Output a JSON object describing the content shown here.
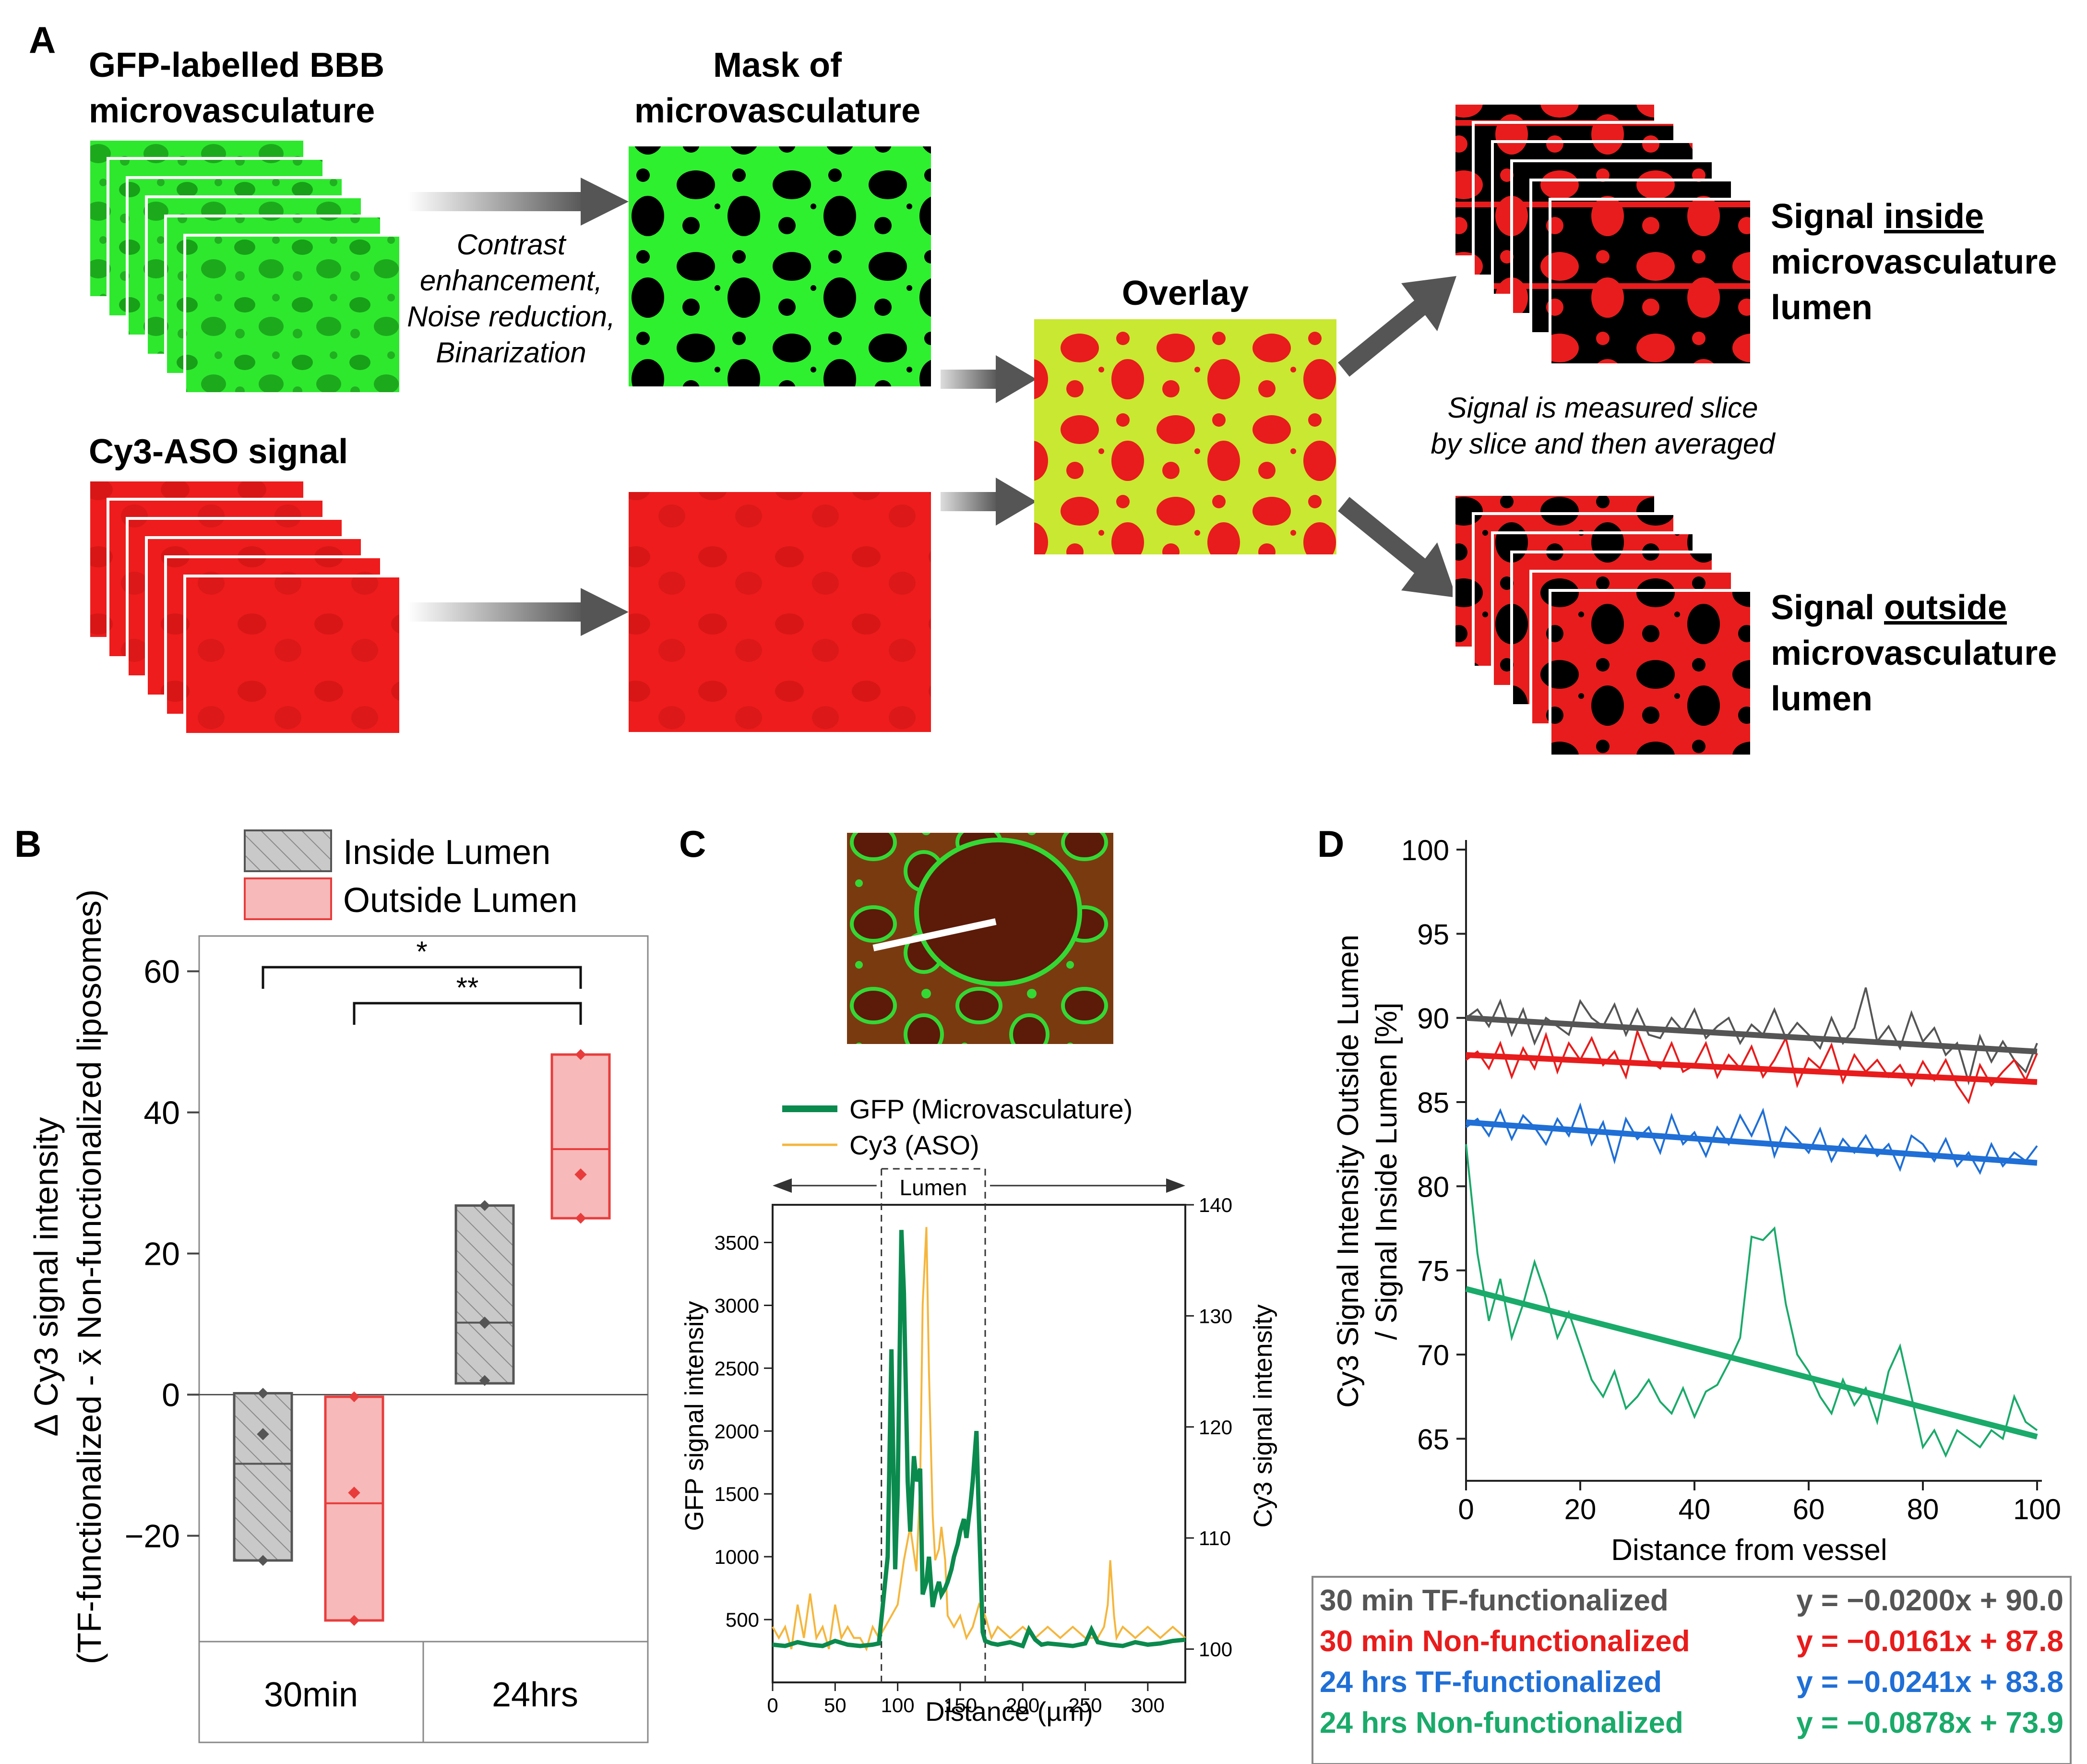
{
  "panel_letters": {
    "a": "A",
    "b": "B",
    "c": "C",
    "d": "D"
  },
  "panel_a": {
    "gfp_title": [
      "GFP-labelled BBB",
      "microvasculature"
    ],
    "mask_title": [
      "Mask of",
      "microvasculature"
    ],
    "processing_steps": [
      "Contrast",
      "enhancement,",
      "Noise reduction,",
      "Binarization"
    ],
    "cy3_title": "Cy3-ASO signal",
    "overlay_title": "Overlay",
    "inside_label": {
      "prefix": "Signal ",
      "emph": "inside",
      "rest": [
        "microvasculature",
        "lumen"
      ]
    },
    "outside_label": {
      "prefix": "Signal ",
      "emph": "outside",
      "rest": [
        "microvasculature",
        "lumen"
      ]
    },
    "measure_note": [
      "Signal is measured slice",
      "by slice and then averaged"
    ],
    "colors": {
      "green": "#2ee82e",
      "red": "#e81c1c",
      "arrow": "#555555",
      "overlay_yellow": "#c8e832"
    }
  },
  "chart_data": [
    {
      "panel": "B",
      "type": "box",
      "categories": [
        "30min",
        "24hrs"
      ],
      "ylabel": [
        "Δ Cy3 signal intensity",
        "(TF-functionalized -  x̄ Non-functionalized liposomes)"
      ],
      "ylim": [
        -35,
        65
      ],
      "yticks": [
        -20,
        0,
        20,
        40,
        60
      ],
      "legend": [
        "Inside Lumen",
        "Outside Lumen"
      ],
      "series": [
        {
          "name": "Inside Lumen",
          "color": "#555555",
          "fill": "#c9c9c9",
          "boxes": [
            {
              "category": "30min",
              "q1": -23.5,
              "median": -9.8,
              "q3": 0.2,
              "mean": -5.6,
              "points": [
                0.2,
                -23.5
              ]
            },
            {
              "category": "24hrs",
              "q1": 1.6,
              "median": 10.2,
              "q3": 26.8,
              "mean": 10.2,
              "points": [
                26.8,
                2.0
              ]
            }
          ]
        },
        {
          "name": "Outside Lumen",
          "color": "#e83c3c",
          "fill": "#f7b9b9",
          "boxes": [
            {
              "category": "30min",
              "q1": -32.0,
              "median": -15.4,
              "q3": -0.3,
              "mean": -13.9,
              "points": [
                -0.3,
                -32.0
              ]
            },
            {
              "category": "24hrs",
              "q1": 25.0,
              "median": 34.8,
              "q3": 48.2,
              "mean": 31.2,
              "points": [
                48.2,
                25.0
              ]
            }
          ]
        }
      ],
      "significance": [
        {
          "from": "30min Inside Lumen",
          "to": "24hrs Outside Lumen",
          "label": "*"
        },
        {
          "from": "24hrs Inside Lumen",
          "to": "24hrs Outside Lumen",
          "label": "**"
        }
      ]
    },
    {
      "panel": "C",
      "type": "line",
      "xlabel": "Distance (µm)",
      "ylabel_left": "GFP signal intensity",
      "ylabel_right": "Cy3 signal intensity",
      "xlim": [
        0,
        330
      ],
      "xticks": [
        0,
        50,
        100,
        150,
        200,
        250,
        300
      ],
      "ylim_left": [
        0,
        3800
      ],
      "yticks_left": [
        500,
        1000,
        1500,
        2000,
        2500,
        3000,
        3500
      ],
      "ylim_right": [
        97,
        140
      ],
      "yticks_right": [
        100,
        110,
        120,
        130,
        140
      ],
      "lumen_label": "Lumen",
      "lumen_range": [
        87,
        170
      ],
      "series": [
        {
          "name": "GFP (Microvasculature)",
          "axis": "left",
          "color": "#0b8a4e",
          "x": [
            0,
            10,
            20,
            30,
            40,
            50,
            60,
            70,
            80,
            85,
            88,
            92,
            95,
            98,
            100,
            103,
            105,
            108,
            110,
            113,
            115,
            118,
            120,
            123,
            125,
            128,
            130,
            133,
            135,
            138,
            140,
            143,
            145,
            148,
            150,
            153,
            155,
            158,
            160,
            163,
            165,
            168,
            170,
            175,
            180,
            190,
            200,
            205,
            210,
            215,
            220,
            230,
            240,
            250,
            255,
            260,
            270,
            280,
            290,
            300,
            310,
            320,
            330
          ],
          "y": [
            300,
            290,
            320,
            300,
            290,
            330,
            300,
            290,
            300,
            310,
            600,
            1000,
            2650,
            900,
            1500,
            3600,
            3100,
            1600,
            1200,
            1800,
            1600,
            1700,
            700,
            800,
            1000,
            600,
            700,
            800,
            700,
            750,
            800,
            900,
            1000,
            1100,
            1200,
            1300,
            1150,
            1400,
            1600,
            2000,
            1300,
            400,
            330,
            310,
            300,
            320,
            290,
            420,
            340,
            300,
            310,
            300,
            290,
            310,
            420,
            320,
            300,
            290,
            320,
            300,
            310,
            330,
            340
          ]
        },
        {
          "name": "Cy3 (ASO)",
          "axis": "right",
          "color": "#f5b63c",
          "x": [
            0,
            5,
            10,
            15,
            20,
            25,
            30,
            35,
            40,
            45,
            50,
            55,
            60,
            65,
            70,
            75,
            80,
            85,
            90,
            95,
            100,
            105,
            110,
            115,
            118,
            120,
            123,
            125,
            128,
            130,
            133,
            135,
            138,
            140,
            145,
            150,
            155,
            160,
            165,
            170,
            175,
            180,
            190,
            200,
            210,
            220,
            230,
            240,
            250,
            260,
            265,
            268,
            270,
            273,
            275,
            280,
            290,
            300,
            310,
            320,
            330
          ],
          "y": [
            102,
            101,
            102,
            100,
            104,
            101,
            105,
            101,
            102,
            100,
            104,
            101,
            102,
            101,
            101,
            100,
            102,
            101,
            102,
            103,
            104,
            108,
            111,
            107,
            115,
            131,
            138,
            125,
            112,
            108,
            109,
            111,
            108,
            103,
            102,
            103,
            101,
            102,
            104,
            103,
            101,
            102,
            101,
            102,
            101,
            102,
            101,
            102,
            101,
            101,
            102,
            104,
            108,
            103,
            101,
            102,
            101,
            102,
            101,
            102,
            101
          ]
        }
      ]
    },
    {
      "panel": "D",
      "type": "line",
      "xlabel": "Distance from vessel",
      "ylabel": [
        "Cy3 Signal Intensity Outside Lumen",
        "/ Signal Inside Lumen [%]"
      ],
      "xlim": [
        0,
        100
      ],
      "xticks": [
        0,
        20,
        40,
        60,
        80,
        100
      ],
      "ylim": [
        62.5,
        100
      ],
      "yticks": [
        65,
        70,
        75,
        80,
        85,
        90,
        95,
        100
      ],
      "series": [
        {
          "name": "30 min TF-functionalized",
          "color": "#555555",
          "fit": {
            "slope": -0.02,
            "intercept": 90.0
          },
          "fit_label": "y = −0.0200x + 90.0",
          "x": [
            0,
            2,
            4,
            6,
            8,
            10,
            12,
            14,
            16,
            18,
            20,
            22,
            24,
            26,
            28,
            30,
            32,
            34,
            36,
            38,
            40,
            42,
            44,
            46,
            48,
            50,
            52,
            54,
            56,
            58,
            60,
            62,
            64,
            66,
            68,
            70,
            72,
            74,
            76,
            78,
            80,
            82,
            84,
            86,
            88,
            90,
            92,
            94,
            96,
            98,
            100
          ],
          "y": [
            90,
            90.5,
            89.5,
            91,
            89,
            90.5,
            88.5,
            90,
            89.5,
            89,
            91,
            90,
            89.5,
            90.8,
            89,
            90.5,
            89,
            88.8,
            90,
            89.2,
            90.5,
            88.8,
            89.5,
            90,
            88.5,
            89.6,
            89,
            90.5,
            88.8,
            89.7,
            89,
            88.2,
            90,
            88.5,
            89.4,
            91.8,
            88.6,
            89.5,
            88.2,
            90.3,
            88.6,
            89.4,
            87.8,
            88.5,
            86.2,
            88.9,
            87.4,
            88.6,
            87.5,
            86.8,
            88.5
          ]
        },
        {
          "name": "30 min Non-functionalized",
          "color": "#e81c1c",
          "fit": {
            "slope": -0.0161,
            "intercept": 87.8
          },
          "fit_label": "y = −0.0161x + 87.8",
          "x": [
            0,
            2,
            4,
            6,
            8,
            10,
            12,
            14,
            16,
            18,
            20,
            22,
            24,
            26,
            28,
            30,
            32,
            34,
            36,
            38,
            40,
            42,
            44,
            46,
            48,
            50,
            52,
            54,
            56,
            58,
            60,
            62,
            64,
            66,
            68,
            70,
            72,
            74,
            76,
            78,
            80,
            82,
            84,
            86,
            88,
            90,
            92,
            94,
            96,
            98,
            100
          ],
          "y": [
            87.5,
            88,
            87,
            88.5,
            86.5,
            88.2,
            87,
            89,
            86.8,
            88.5,
            87.5,
            88.8,
            87.2,
            88,
            86.5,
            89.2,
            87.5,
            87,
            88.5,
            86.8,
            87.2,
            88.5,
            86.5,
            87.8,
            87,
            88.3,
            86.5,
            87.5,
            88.8,
            86,
            87.6,
            87,
            88.4,
            86.2,
            87.8,
            86.8,
            87.5,
            86.5,
            87.2,
            86,
            87.4,
            86.3,
            87.5,
            86,
            85,
            87.2,
            86,
            86.8,
            87.5,
            86.3,
            87.9
          ]
        },
        {
          "name": "24 hrs TF-functionalized",
          "color": "#1f6fd6",
          "fit": {
            "slope": -0.0241,
            "intercept": 83.8
          },
          "fit_label": "y = −0.0241x + 83.8",
          "x": [
            0,
            2,
            4,
            6,
            8,
            10,
            12,
            14,
            16,
            18,
            20,
            22,
            24,
            26,
            28,
            30,
            32,
            34,
            36,
            38,
            40,
            42,
            44,
            46,
            48,
            50,
            52,
            54,
            56,
            58,
            60,
            62,
            64,
            66,
            68,
            70,
            72,
            74,
            76,
            78,
            80,
            82,
            84,
            86,
            88,
            90,
            92,
            94,
            96,
            98,
            100
          ],
          "y": [
            83.5,
            84,
            83,
            84.5,
            82.8,
            84.2,
            83.5,
            82.5,
            84,
            83,
            84.8,
            82.5,
            83.8,
            81.5,
            84,
            82.8,
            83.5,
            82,
            84.2,
            82.5,
            83.2,
            81.8,
            83.5,
            82.5,
            84.2,
            83,
            84.5,
            81.8,
            83.5,
            82.8,
            82,
            83.4,
            81.5,
            82.8,
            82,
            83,
            81.8,
            82.5,
            81,
            83,
            82.5,
            81.5,
            82.8,
            81.2,
            82,
            80.8,
            82.5,
            81.2,
            82,
            81.5,
            82.4
          ]
        },
        {
          "name": "24 hrs Non-functionalized",
          "color": "#1aaa6a",
          "fit": {
            "slope": -0.0878,
            "intercept": 73.9
          },
          "fit_label": "y = −0.0878x + 73.9",
          "x": [
            0,
            2,
            4,
            6,
            8,
            10,
            12,
            14,
            16,
            18,
            20,
            22,
            24,
            26,
            28,
            30,
            32,
            34,
            36,
            38,
            40,
            42,
            44,
            46,
            48,
            50,
            52,
            54,
            56,
            58,
            60,
            62,
            64,
            66,
            68,
            70,
            72,
            74,
            76,
            78,
            80,
            82,
            84,
            86,
            88,
            90,
            92,
            94,
            96,
            98,
            100
          ],
          "y": [
            82.5,
            76,
            72,
            74.5,
            71,
            73,
            75.5,
            73.5,
            71,
            72.5,
            70.5,
            68.5,
            67.5,
            69,
            66.8,
            67.5,
            68.5,
            67.2,
            66.5,
            68,
            66.3,
            67.8,
            68.2,
            69.5,
            71,
            77,
            76.8,
            77.5,
            73,
            70,
            69,
            67.5,
            66.5,
            68.5,
            67,
            68,
            66,
            69,
            70.5,
            67.5,
            64.5,
            65.5,
            64,
            65.5,
            65,
            64.5,
            65.5,
            65,
            67.5,
            66,
            65.5
          ]
        }
      ]
    }
  ]
}
